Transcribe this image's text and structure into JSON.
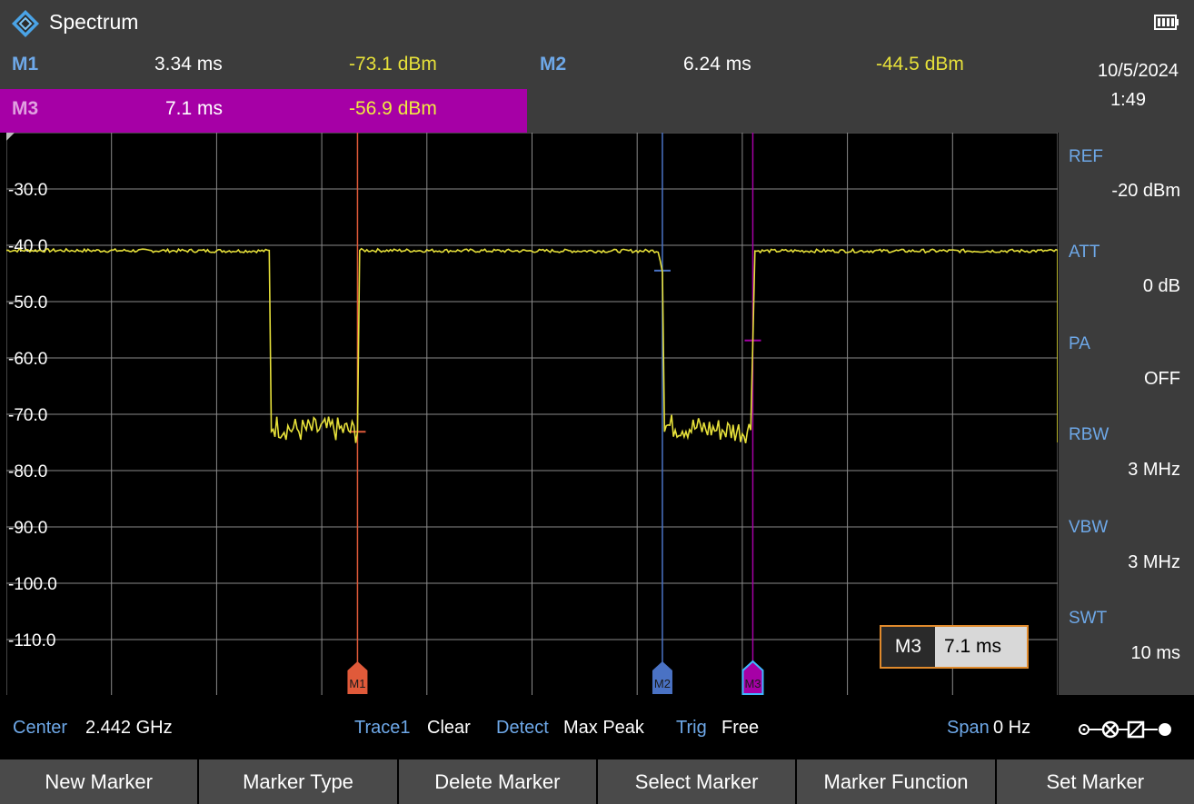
{
  "title_bar": {
    "app_title": "Spectrum",
    "logo_icon": "rs-diamond-logo-icon",
    "battery_icon": "battery-full-icon"
  },
  "markers": [
    {
      "name": "M1",
      "time": "3.34 ms",
      "level": "-73.1 dBm",
      "color": "#e05a3a"
    },
    {
      "name": "M2",
      "time": "6.24 ms",
      "level": "-44.5 dBm",
      "color": "#4a72c4"
    },
    {
      "name": "M3",
      "time": "7.1 ms",
      "level": "-56.9 dBm",
      "color": "#a600a6"
    }
  ],
  "side_panel": {
    "date": "10/5/2024",
    "time": "1:49",
    "params": [
      {
        "label": "REF",
        "value": "-20 dBm"
      },
      {
        "label": "ATT",
        "value": "0 dB"
      },
      {
        "label": "PA",
        "value": "OFF"
      },
      {
        "label": "RBW",
        "value": "3 MHz"
      },
      {
        "label": "VBW",
        "value": "3 MHz"
      },
      {
        "label": "SWT",
        "value": "10 ms"
      }
    ]
  },
  "chart_data": {
    "type": "line",
    "y_tick_labels": [
      "-30.0",
      "-40.0",
      "-50.0",
      "-60.0",
      "-70.0",
      "-80.0",
      "-90.0",
      "-100.0",
      "-110.0"
    ],
    "x_unit": "ms",
    "y_unit": "dBm",
    "xlim": [
      0,
      10
    ],
    "ylim": [
      -120,
      -20
    ],
    "grid": true,
    "trace_color": "#e6e03a",
    "series": [
      {
        "points": [
          [
            0,
            -40.9
          ],
          [
            2.5,
            -41
          ],
          [
            2.52,
            -72
          ],
          [
            2.8,
            -72.8
          ],
          [
            3.1,
            -72.6
          ],
          [
            3.34,
            -73.1
          ],
          [
            3.36,
            -40.9
          ],
          [
            5,
            -41
          ],
          [
            6.2,
            -41
          ],
          [
            6.24,
            -44.5
          ],
          [
            6.26,
            -72
          ],
          [
            6.6,
            -72.5
          ],
          [
            7.0,
            -73
          ],
          [
            7.08,
            -72.7
          ],
          [
            7.1,
            -56.9
          ],
          [
            7.12,
            -41
          ],
          [
            10,
            -41
          ],
          [
            10,
            -75
          ]
        ]
      }
    ],
    "marker_flags": [
      {
        "label": "M1",
        "x": 3.34
      },
      {
        "label": "M2",
        "x": 6.24
      },
      {
        "label": "M3",
        "x": 7.1
      }
    ]
  },
  "marker_popup": {
    "name": "M3",
    "value": "7.1 ms"
  },
  "status_bar": {
    "center_label": "Center",
    "center_value": "2.442 GHz",
    "trace_label": "Trace1",
    "trace_value": "Clear",
    "detect_label": "Detect",
    "detect_value": "Max Peak",
    "trig_label": "Trig",
    "trig_value": "Free",
    "span_label": "Span",
    "span_value": "0 Hz",
    "connector_icon": "input-connector-icon"
  },
  "softkeys": [
    "New Marker",
    "Marker Type",
    "Delete Marker",
    "Select Marker",
    "Marker Function",
    "Set Marker"
  ]
}
